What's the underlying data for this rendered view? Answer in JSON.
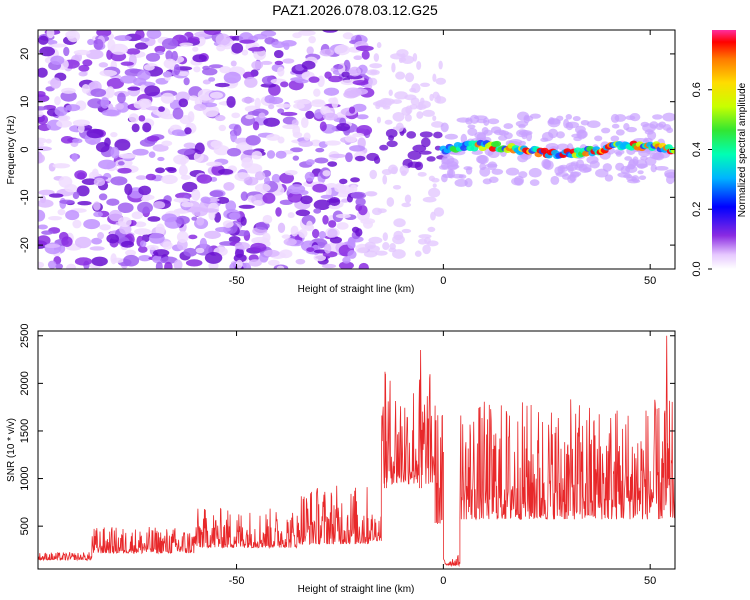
{
  "title": "PAZ1.2026.078.03.12.G25",
  "chart_data": [
    {
      "type": "heatmap",
      "name": "spectrogram",
      "xlabel": "Height of straight line (km)",
      "ylabel": "Frequency (Hz)",
      "xlim": [
        -98,
        56
      ],
      "ylim": [
        -25,
        25
      ],
      "xticks": [
        -50,
        0,
        50
      ],
      "yticks": [
        -20,
        -10,
        0,
        10,
        20
      ],
      "colorbar": {
        "label": "Normalized spectral amplitude",
        "ticks": [
          0.0,
          0.2,
          0.4,
          0.6
        ],
        "range": [
          0.0,
          0.8
        ]
      },
      "features": [
        {
          "description": "diffuse noise region",
          "x_range": [
            -98,
            -18
          ],
          "freq_range": [
            -25,
            25
          ],
          "amplitude": 0.05
        },
        {
          "description": "transition region",
          "x_range": [
            -18,
            0
          ],
          "freq_center": 0,
          "amplitude": 0.25
        },
        {
          "description": "signal band",
          "x_range": [
            0,
            56
          ],
          "freq_center": 0,
          "freq_halfwidth": 3,
          "amplitude": 0.75
        }
      ]
    },
    {
      "type": "line",
      "name": "snr",
      "xlabel": "Height of straight line (km)",
      "ylabel": "SNR (10 * v/v)",
      "xlim": [
        -98,
        56
      ],
      "ylim": [
        50,
        2550
      ],
      "xticks": [
        -50,
        0,
        50
      ],
      "yticks": [
        500,
        1000,
        1500,
        2000,
        2500
      ],
      "color": "#e8282a",
      "segments": [
        {
          "x": [
            -98,
            -85
          ],
          "mean": 170,
          "jitter": 60
        },
        {
          "x": [
            -85,
            -60
          ],
          "mean": 300,
          "jitter": 200
        },
        {
          "x": [
            -60,
            -35
          ],
          "mean": 400,
          "jitter": 300
        },
        {
          "x": [
            -35,
            -18
          ],
          "mean": 500,
          "jitter": 450
        },
        {
          "x": [
            -18,
            -15
          ],
          "mean": 450,
          "jitter": 250
        },
        {
          "x": [
            -15,
            -2
          ],
          "mean": 1300,
          "jitter": 850
        },
        {
          "x": [
            -2,
            0
          ],
          "mean": 900,
          "jitter": 900
        },
        {
          "x": [
            0,
            4
          ],
          "mean": 120,
          "jitter": 80
        },
        {
          "x": [
            4,
            56
          ],
          "mean": 950,
          "jitter": 900
        }
      ],
      "peaks": [
        {
          "x": -5.5,
          "y": 2350
        },
        {
          "x": 54,
          "y": 2500
        },
        {
          "x": -14,
          "y": 2100
        }
      ]
    }
  ]
}
